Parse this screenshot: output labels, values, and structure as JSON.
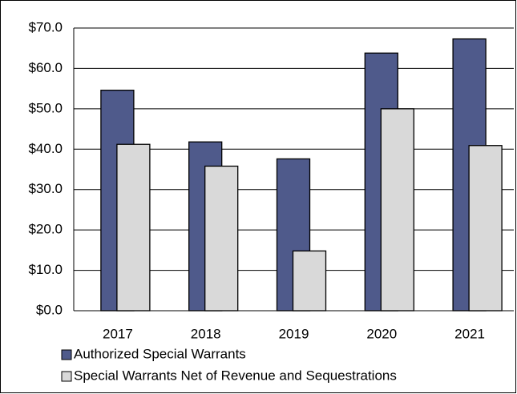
{
  "chart_data": {
    "type": "bar",
    "categories": [
      "2017",
      "2018",
      "2019",
      "2020",
      "2021"
    ],
    "series": [
      {
        "name": "Authorized Special Warrants",
        "color": "#4f5a8b",
        "values": [
          54.6,
          41.8,
          37.6,
          63.8,
          67.3
        ]
      },
      {
        "name": "Special Warrants Net of Revenue and Sequestrations",
        "color": "#d9d9d9",
        "values": [
          41.2,
          35.8,
          14.8,
          50.0,
          40.9
        ]
      }
    ],
    "ylim": [
      0,
      70
    ],
    "yticks": [
      {
        "value": 0,
        "label": "$0.0"
      },
      {
        "value": 10,
        "label": "$10.0"
      },
      {
        "value": 20,
        "label": "$20.0"
      },
      {
        "value": 30,
        "label": "$30.0"
      },
      {
        "value": 40,
        "label": "$40.0"
      },
      {
        "value": 50,
        "label": "$50.0"
      },
      {
        "value": 60,
        "label": "$60.0"
      },
      {
        "value": 70,
        "label": "$70.0"
      }
    ],
    "grid": true,
    "legend": "bottom"
  }
}
